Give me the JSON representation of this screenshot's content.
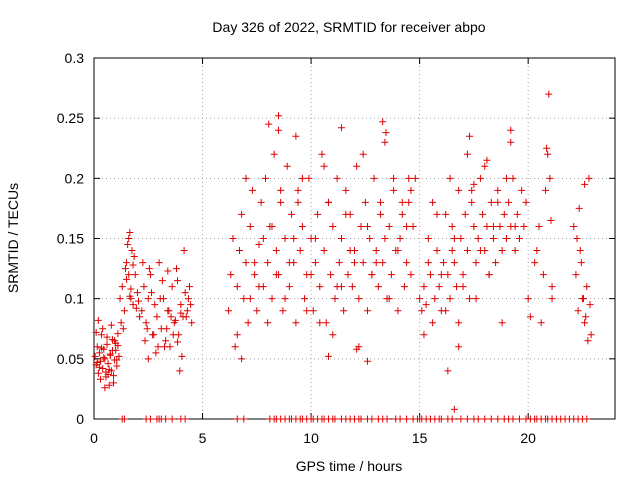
{
  "chart_data": {
    "type": "scatter",
    "title": "Day 326 of 2022, SRMTID for receiver abpo",
    "xlabel": "GPS time / hours",
    "ylabel": "SRMTID / TECUs",
    "xlim": [
      0,
      24
    ],
    "ylim": [
      0,
      0.3
    ],
    "xticks": [
      0,
      5,
      10,
      15,
      20
    ],
    "xtick_labels": [
      "0",
      "5",
      "10",
      "15",
      "20"
    ],
    "yticks": [
      0,
      0.05,
      0.1,
      0.15,
      0.2,
      0.25,
      0.3
    ],
    "ytick_labels": [
      "0",
      "0.05",
      "0.1",
      "0.15",
      "0.2",
      "0.25",
      "0.3"
    ],
    "grid": true,
    "marker": "+",
    "color": "#e00000",
    "series": [
      {
        "name": "SRMTID",
        "x": [
          0.05,
          0.1,
          0.15,
          0.2,
          0.25,
          0.3,
          0.35,
          0.4,
          0.45,
          0.5,
          0.55,
          0.6,
          0.65,
          0.7,
          0.75,
          0.8,
          0.85,
          0.9,
          0.95,
          1.0,
          1.05,
          1.1,
          1.15,
          0.1,
          0.2,
          0.3,
          0.4,
          0.5,
          0.6,
          0.7,
          0.8,
          0.9,
          1.0,
          1.1,
          0.15,
          0.35,
          0.55,
          0.75,
          0.95,
          0.25,
          0.45,
          0.65,
          0.85,
          1.05,
          1.2,
          1.3,
          1.4,
          1.5,
          1.55,
          1.6,
          1.65,
          1.7,
          1.75,
          1.8,
          1.9,
          2.0,
          2.1,
          1.35,
          1.45,
          1.6,
          1.7,
          1.85,
          1.95,
          1.25,
          1.5,
          1.8,
          2.05,
          1.65,
          2.2,
          2.3,
          2.4,
          2.5,
          2.6,
          2.7,
          2.8,
          2.9,
          3.0,
          3.1,
          3.2,
          3.3,
          3.4,
          3.5,
          3.6,
          3.7,
          3.8,
          3.9,
          4.0,
          4.1,
          4.2,
          4.3,
          4.4,
          4.5,
          2.25,
          2.45,
          2.65,
          2.85,
          3.05,
          3.25,
          3.45,
          3.65,
          3.85,
          4.05,
          4.25,
          4.45,
          2.35,
          2.75,
          3.15,
          3.55,
          3.95,
          4.35,
          2.55,
          2.95,
          3.35,
          3.75,
          4.15,
          2.5,
          3.4,
          3.85,
          4.0,
          6.2,
          6.3,
          6.4,
          6.5,
          6.6,
          6.7,
          6.8,
          6.9,
          7.0,
          7.1,
          7.2,
          7.3,
          7.4,
          7.5,
          7.6,
          7.7,
          7.8,
          7.9,
          8.0,
          8.1,
          8.2,
          8.3,
          8.4,
          8.5,
          8.6,
          8.7,
          8.8,
          8.9,
          9.0,
          9.1,
          9.2,
          9.3,
          9.4,
          9.5,
          9.6,
          9.7,
          9.8,
          9.9,
          10.0,
          10.1,
          10.2,
          10.3,
          10.4,
          10.5,
          10.6,
          10.7,
          10.8,
          10.9,
          11.0,
          11.1,
          11.2,
          11.3,
          11.4,
          11.5,
          11.6,
          11.7,
          11.8,
          11.9,
          12.0,
          12.1,
          12.2,
          12.3,
          12.4,
          12.5,
          12.6,
          12.7,
          12.8,
          12.9,
          13.0,
          13.1,
          13.2,
          13.3,
          13.4,
          13.5,
          13.6,
          13.7,
          13.8,
          13.9,
          14.0,
          14.1,
          14.2,
          14.3,
          14.4,
          14.5,
          14.6,
          14.7,
          6.6,
          7.0,
          7.2,
          7.4,
          7.8,
          8.0,
          8.4,
          8.6,
          8.8,
          9.2,
          9.6,
          10.0,
          10.4,
          10.8,
          11.0,
          11.4,
          11.8,
          12.2,
          12.6,
          13.0,
          13.2,
          13.6,
          14.0,
          14.4,
          14.6,
          6.8,
          7.6,
          8.2,
          8.5,
          9.0,
          9.4,
          9.8,
          10.2,
          10.6,
          11.2,
          11.6,
          12.0,
          12.4,
          12.8,
          13.4,
          13.8,
          14.2,
          14.5,
          8.05,
          8.5,
          9.3,
          11.4,
          12.1,
          13.3,
          13.45,
          14.8,
          12.6,
          10.8,
          15.0,
          15.1,
          15.2,
          15.3,
          15.4,
          15.5,
          15.6,
          15.7,
          15.8,
          15.9,
          16.0,
          16.1,
          16.2,
          16.3,
          16.4,
          16.5,
          16.6,
          16.7,
          16.8,
          16.9,
          17.0,
          17.1,
          17.2,
          17.3,
          17.4,
          17.5,
          17.6,
          17.7,
          17.8,
          17.9,
          18.0,
          18.1,
          18.2,
          18.3,
          18.4,
          18.5,
          18.6,
          18.7,
          18.8,
          18.9,
          19.0,
          19.1,
          19.2,
          19.3,
          19.4,
          19.5,
          19.6,
          19.7,
          19.8,
          19.9,
          15.2,
          15.6,
          16.0,
          16.4,
          16.8,
          17.2,
          17.6,
          18.0,
          18.4,
          18.8,
          19.2,
          19.6,
          15.4,
          15.8,
          16.2,
          16.6,
          17.0,
          17.4,
          17.8,
          18.2,
          18.6,
          19.0,
          19.4,
          16.3,
          17.3,
          18.1,
          19.2,
          16.6,
          17.5,
          20.0,
          20.1,
          20.3,
          20.5,
          20.7,
          20.8,
          20.9,
          21.0,
          21.1,
          20.6,
          20.4,
          20.85,
          21.05,
          20.95,
          22.1,
          22.2,
          22.3,
          22.4,
          22.5,
          22.6,
          22.7,
          22.8,
          22.9,
          22.25,
          22.45,
          22.65,
          22.85,
          22.35,
          22.55,
          22.75,
          22.6,
          21.1,
          16.8,
          16.5,
          1.3,
          1.4,
          2.4,
          2.6,
          2.9,
          3.0,
          3.1,
          3.3,
          3.6,
          4.0,
          4.2,
          6.6,
          6.9,
          8.1,
          8.3,
          8.4,
          8.6,
          8.8,
          9.0,
          9.1,
          9.3,
          9.5,
          9.6,
          9.8,
          10.0,
          10.1,
          10.3,
          10.5,
          10.6,
          10.8,
          11.0,
          11.1,
          11.4,
          11.6,
          11.8,
          12.0,
          12.2,
          12.3,
          12.6,
          12.8,
          13.1,
          13.3,
          13.5,
          13.9,
          14.1,
          14.4,
          14.7,
          14.9,
          15.0,
          15.1,
          15.3,
          15.5,
          15.7,
          15.9,
          16.0,
          16.3,
          16.5,
          16.9,
          17.2,
          17.5,
          17.7,
          18.0,
          18.3,
          18.6,
          18.9,
          19.1,
          19.3,
          19.6,
          19.9,
          20.1,
          20.3,
          20.4,
          20.6,
          20.8,
          20.9,
          21.1,
          21.3,
          21.5,
          21.7,
          21.9,
          22.1,
          22.3,
          22.5,
          22.7
        ],
        "y": [
          0.052,
          0.045,
          0.06,
          0.038,
          0.055,
          0.048,
          0.07,
          0.042,
          0.058,
          0.05,
          0.035,
          0.062,
          0.046,
          0.028,
          0.053,
          0.04,
          0.066,
          0.03,
          0.049,
          0.057,
          0.044,
          0.061,
          0.052,
          0.072,
          0.082,
          0.033,
          0.075,
          0.026,
          0.068,
          0.041,
          0.078,
          0.036,
          0.063,
          0.071,
          0.047,
          0.059,
          0.039,
          0.054,
          0.065,
          0.043,
          0.051,
          0.037,
          0.057,
          0.049,
          0.1,
          0.11,
          0.09,
          0.13,
          0.145,
          0.12,
          0.155,
          0.1,
          0.14,
          0.095,
          0.12,
          0.105,
          0.085,
          0.075,
          0.125,
          0.15,
          0.108,
          0.135,
          0.092,
          0.08,
          0.116,
          0.128,
          0.098,
          0.102,
          0.09,
          0.11,
          0.08,
          0.1,
          0.12,
          0.07,
          0.095,
          0.085,
          0.13,
          0.075,
          0.1,
          0.065,
          0.09,
          0.06,
          0.11,
          0.08,
          0.125,
          0.07,
          0.095,
          0.085,
          0.105,
          0.09,
          0.11,
          0.08,
          0.13,
          0.075,
          0.105,
          0.055,
          0.1,
          0.06,
          0.09,
          0.07,
          0.115,
          0.052,
          0.085,
          0.095,
          0.065,
          0.07,
          0.115,
          0.085,
          0.04,
          0.1,
          0.125,
          0.06,
          0.075,
          0.082,
          0.14,
          0.05,
          0.123,
          0.064,
          0.088,
          0.09,
          0.12,
          0.15,
          0.06,
          0.11,
          0.14,
          0.17,
          0.1,
          0.13,
          0.08,
          0.16,
          0.19,
          0.12,
          0.09,
          0.145,
          0.18,
          0.11,
          0.2,
          0.13,
          0.16,
          0.1,
          0.22,
          0.14,
          0.12,
          0.18,
          0.09,
          0.15,
          0.21,
          0.11,
          0.17,
          0.13,
          0.08,
          0.19,
          0.14,
          0.16,
          0.1,
          0.12,
          0.2,
          0.15,
          0.09,
          0.13,
          0.17,
          0.11,
          0.22,
          0.14,
          0.08,
          0.18,
          0.12,
          0.16,
          0.1,
          0.2,
          0.13,
          0.15,
          0.09,
          0.19,
          0.12,
          0.17,
          0.11,
          0.14,
          0.21,
          0.1,
          0.16,
          0.13,
          0.18,
          0.09,
          0.15,
          0.12,
          0.2,
          0.14,
          0.11,
          0.17,
          0.13,
          0.23,
          0.1,
          0.16,
          0.12,
          0.19,
          0.14,
          0.09,
          0.15,
          0.18,
          0.11,
          0.13,
          0.2,
          0.12,
          0.16,
          0.07,
          0.2,
          0.1,
          0.13,
          0.15,
          0.08,
          0.12,
          0.19,
          0.1,
          0.15,
          0.2,
          0.12,
          0.08,
          0.18,
          0.07,
          0.11,
          0.14,
          0.06,
          0.16,
          0.13,
          0.18,
          0.1,
          0.14,
          0.16,
          0.19,
          0.05,
          0.11,
          0.16,
          0.24,
          0.13,
          0.18,
          0.09,
          0.15,
          0.21,
          0.11,
          0.17,
          0.13,
          0.22,
          0.12,
          0.15,
          0.2,
          0.17,
          0.18,
          0.245,
          0.252,
          0.235,
          0.242,
          0.058,
          0.247,
          0.238,
          0.2,
          0.048,
          0.052,
          0.1,
          0.09,
          0.11,
          0.095,
          0.15,
          0.12,
          0.08,
          0.1,
          0.14,
          0.11,
          0.09,
          0.13,
          0.17,
          0.12,
          0.1,
          0.16,
          0.13,
          0.11,
          0.19,
          0.15,
          0.12,
          0.17,
          0.14,
          0.1,
          0.18,
          0.16,
          0.13,
          0.15,
          0.2,
          0.17,
          0.14,
          0.16,
          0.12,
          0.18,
          0.15,
          0.13,
          0.19,
          0.16,
          0.14,
          0.17,
          0.15,
          0.18,
          0.16,
          0.2,
          0.14,
          0.17,
          0.15,
          0.19,
          0.16,
          0.18,
          0.07,
          0.18,
          0.12,
          0.2,
          0.08,
          0.22,
          0.1,
          0.21,
          0.16,
          0.08,
          0.23,
          0.15,
          0.13,
          0.17,
          0.09,
          0.15,
          0.11,
          0.19,
          0.14,
          0.12,
          0.18,
          0.2,
          0.16,
          0.04,
          0.235,
          0.215,
          0.24,
          0.008,
          0.195,
          0.1,
          0.085,
          0.13,
          0.16,
          0.12,
          0.19,
          0.22,
          0.2,
          0.11,
          0.08,
          0.14,
          0.225,
          0.165,
          0.27,
          0.16,
          0.12,
          0.09,
          0.14,
          0.1,
          0.08,
          0.11,
          0.2,
          0.07,
          0.15,
          0.13,
          0.085,
          0.095,
          0.175,
          0.1,
          0.065,
          0.195,
          0.1,
          0.06,
          0.14,
          0,
          0,
          0,
          0,
          0,
          0,
          0,
          0,
          0,
          0,
          0,
          0,
          0,
          0,
          0,
          0,
          0,
          0,
          0,
          0,
          0,
          0,
          0,
          0,
          0,
          0,
          0,
          0,
          0,
          0,
          0,
          0,
          0,
          0,
          0,
          0,
          0,
          0,
          0,
          0,
          0,
          0,
          0,
          0,
          0,
          0,
          0,
          0,
          0,
          0,
          0,
          0,
          0,
          0,
          0,
          0,
          0,
          0,
          0,
          0,
          0,
          0,
          0,
          0,
          0,
          0,
          0,
          0,
          0,
          0,
          0,
          0,
          0,
          0,
          0,
          0,
          0,
          0,
          0,
          0,
          0,
          0,
          0,
          0
        ]
      }
    ]
  }
}
